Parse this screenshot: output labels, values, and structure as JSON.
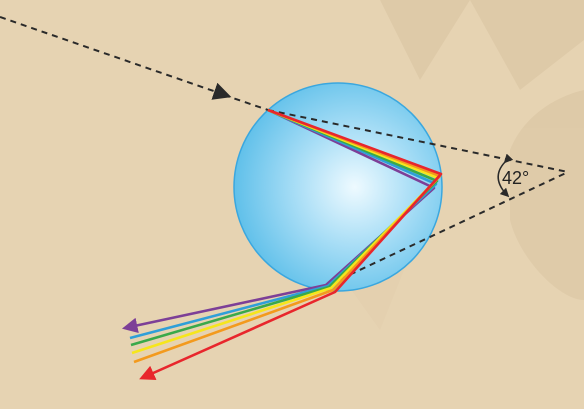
{
  "diagram": {
    "angle_label": "42°",
    "colors": {
      "background": "#e6d3b2",
      "watermark": "#dcc7a5",
      "droplet_center": "#e6f7ff",
      "droplet_edge": "#57bde9",
      "droplet_stroke": "#3aa7df",
      "dashed_line": "#2a2a2a"
    },
    "spectrum": [
      {
        "name": "red",
        "color": "#e8262c"
      },
      {
        "name": "orange",
        "color": "#f39a1d"
      },
      {
        "name": "yellow",
        "color": "#f6e61c"
      },
      {
        "name": "green",
        "color": "#3aa94a"
      },
      {
        "name": "blue",
        "color": "#2f9fd8"
      },
      {
        "name": "violet",
        "color": "#7d3f97"
      }
    ]
  }
}
